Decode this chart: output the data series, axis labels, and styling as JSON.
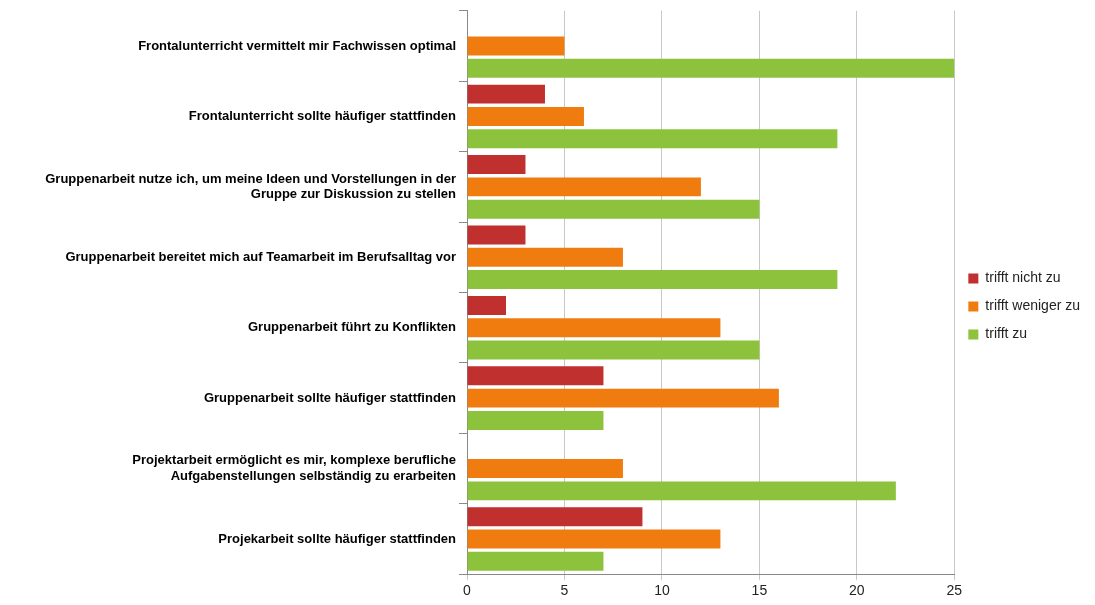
{
  "chart_data": {
    "type": "bar",
    "orientation": "horizontal",
    "categories": [
      "Frontalunterricht vermittelt mir Fachwissen optimal",
      "Frontalunterricht sollte häufiger stattfinden",
      "Gruppenarbeit nutze ich, um meine Ideen und Vorstellungen in der Gruppe zur Diskussion zu stellen",
      "Gruppenarbeit bereitet mich auf Teamarbeit im Berufsalltag vor",
      "Gruppenarbeit führt zu Konflikten",
      "Gruppenarbeit sollte häufiger stattfinden",
      "Projektarbeit ermöglicht es mir, komplexe berufliche Aufgabenstellungen selbständig zu erarbeiten",
      "Projekarbeit sollte häufiger stattfinden"
    ],
    "series": [
      {
        "name": "trifft nicht zu",
        "color": "#c0302e",
        "values": [
          0,
          4,
          3,
          3,
          2,
          7,
          0,
          9
        ]
      },
      {
        "name": "trifft weniger zu",
        "color": "#f07c10",
        "values": [
          5,
          6,
          12,
          8,
          13,
          16,
          8,
          13
        ]
      },
      {
        "name": "trifft zu",
        "color": "#8cc23c",
        "values": [
          25,
          19,
          15,
          19,
          15,
          7,
          22,
          7
        ]
      }
    ],
    "xlim": [
      0,
      25
    ],
    "xticks": [
      0,
      5,
      10,
      15,
      20,
      25
    ],
    "grid": "x",
    "legend": "right"
  }
}
